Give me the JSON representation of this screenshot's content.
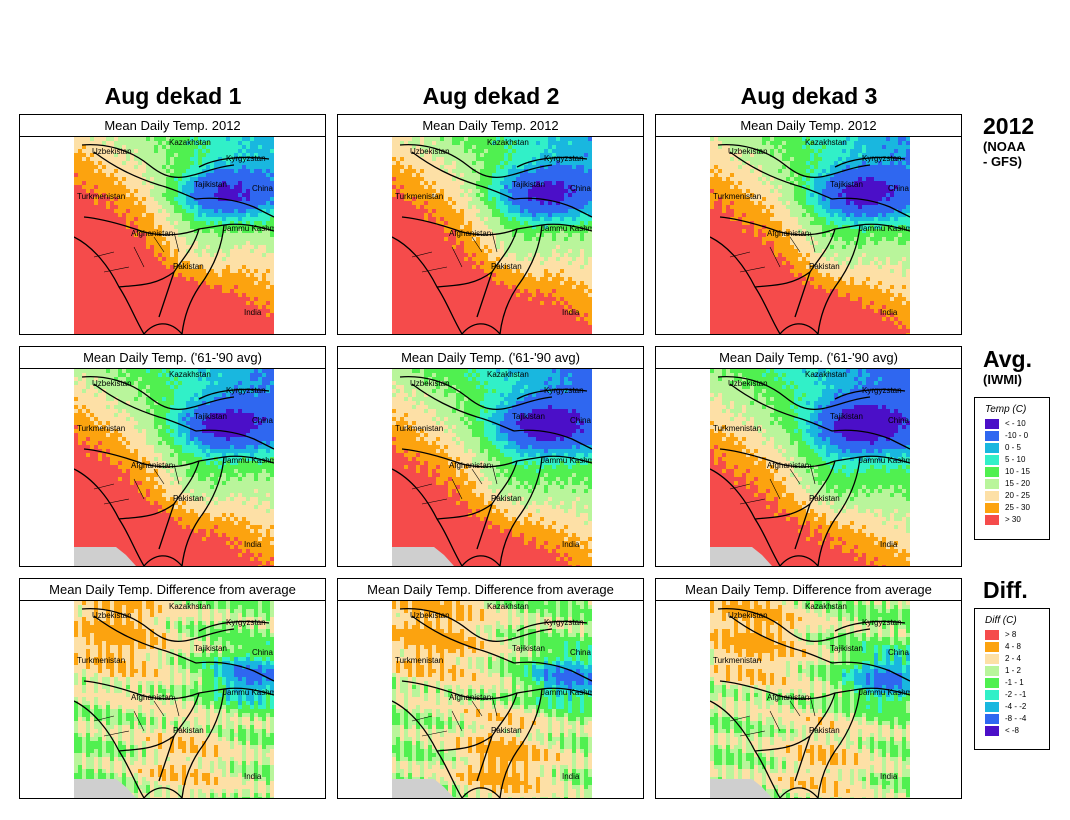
{
  "columns": [
    "Aug dekad 1",
    "Aug dekad 2",
    "Aug dekad 3"
  ],
  "rows": [
    {
      "id": "y2012",
      "title": "Mean Daily Temp. 2012",
      "label": "2012",
      "sub": [
        "(NOAA",
        "- GFS)"
      ],
      "scheme": "temp"
    },
    {
      "id": "avg",
      "title": "Mean Daily Temp. ('61-'90 avg)",
      "label": "Avg.",
      "sub": [
        "(IWMI)"
      ],
      "scheme": "temp"
    },
    {
      "id": "diff",
      "title": "Mean Daily Temp. Difference from average",
      "label": "Diff.",
      "sub": [],
      "scheme": "diff"
    }
  ],
  "map_labels": [
    "Kazakhstan",
    "Uzbekistan",
    "Kyrgyzstan",
    "Tajikistan",
    "China",
    "Turkmenistan",
    "Afghanistan",
    "Jammu Kashmir",
    "Pakistan",
    "India"
  ],
  "legends": {
    "temp": {
      "title": "Temp (C)",
      "items": [
        {
          "label": "< - 10",
          "color": "#4b0fc8"
        },
        {
          "label": "-10 -  0",
          "color": "#2f67f0"
        },
        {
          "label": "0 -  5",
          "color": "#19b7df"
        },
        {
          "label": "5 - 10",
          "color": "#31f0c8"
        },
        {
          "label": "10 - 15",
          "color": "#50f050"
        },
        {
          "label": "15 - 20",
          "color": "#b9f59b"
        },
        {
          "label": "20 - 25",
          "color": "#fde0a6"
        },
        {
          "label": "25 - 30",
          "color": "#fca30f"
        },
        {
          "label": "> 30",
          "color": "#f54b4b"
        }
      ]
    },
    "diff": {
      "title": "Diff (C)",
      "items": [
        {
          "label": "> 8",
          "color": "#f54b4b"
        },
        {
          "label": "4 - 8",
          "color": "#fca30f"
        },
        {
          "label": "2 - 4",
          "color": "#fde0a6"
        },
        {
          "label": "1 - 2",
          "color": "#b9f59b"
        },
        {
          "label": "-1 - 1",
          "color": "#50f050"
        },
        {
          "label": "-2 - -1",
          "color": "#31f0c8"
        },
        {
          "label": "-4 - -2",
          "color": "#19b7df"
        },
        {
          "label": "-8 - -4",
          "color": "#2f67f0"
        },
        {
          "label": "< -8",
          "color": "#4b0fc8"
        }
      ]
    }
  },
  "colors": {
    "sea": "#cfcfcf",
    "border": "#000000"
  }
}
